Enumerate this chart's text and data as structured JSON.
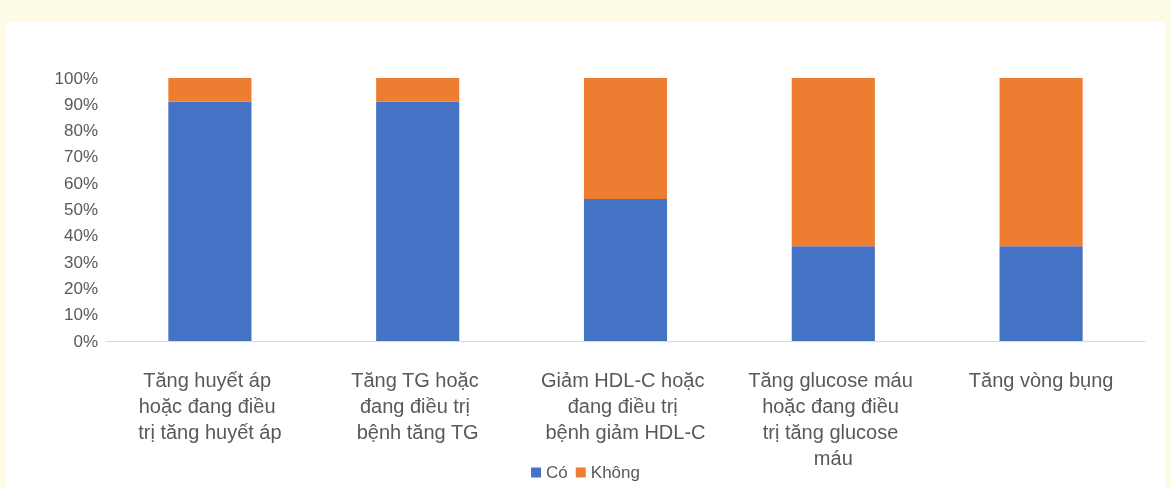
{
  "chart_data": {
    "type": "bar",
    "stacked": true,
    "categories": [
      "Tăng huyết áp hoặc đang điều trị tăng huyết áp",
      "Tăng TG hoặc đang điều trị bệnh tăng TG",
      "Giảm HDL-C hoặc đang điều trị bệnh giảm HDL-C",
      "Tăng glucose máu hoặc đang điều trị tăng glucose máu",
      "Tăng vòng bụng"
    ],
    "series": [
      {
        "name": "Có",
        "color": "#4472c4",
        "values": [
          91,
          91,
          54,
          36,
          36
        ]
      },
      {
        "name": "Không",
        "color": "#ed7d31",
        "values": [
          9,
          9,
          46,
          64,
          64
        ]
      }
    ],
    "ylim": [
      0,
      100
    ],
    "yticks": [
      {
        "value": 0,
        "label": "0%"
      },
      {
        "value": 10,
        "label": "10%"
      },
      {
        "value": 20,
        "label": "20%"
      },
      {
        "value": 30,
        "label": "30%"
      },
      {
        "value": 40,
        "label": "40%"
      },
      {
        "value": 50,
        "label": "50%"
      },
      {
        "value": 60,
        "label": "60%"
      },
      {
        "value": 70,
        "label": "70%"
      },
      {
        "value": 80,
        "label": "80%"
      },
      {
        "value": 90,
        "label": "90%"
      },
      {
        "value": 100,
        "label": "100%"
      }
    ],
    "grid": false,
    "legend": "bottom"
  }
}
